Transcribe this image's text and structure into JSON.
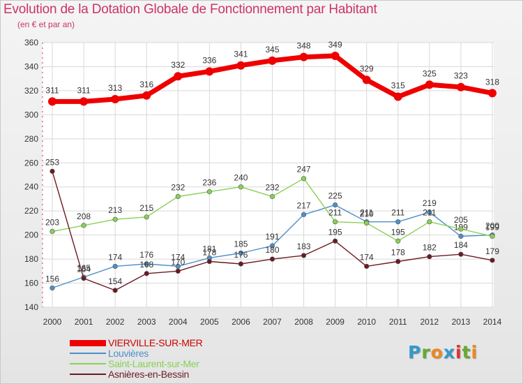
{
  "header": {
    "title": "Evolution de la Dotation Globale de Fonctionnement par Habitant",
    "subtitle": "(en € et par an)"
  },
  "brand": {
    "letters": [
      "P",
      "r",
      "o",
      "x",
      "i",
      "t",
      "i"
    ],
    "colors": [
      "#3399cc",
      "#66aa33",
      "#ee8822",
      "#3399cc",
      "#dd3333",
      "#66aa33",
      "#ee8822"
    ]
  },
  "chart_data": {
    "type": "line",
    "x": [
      2000,
      2001,
      2002,
      2003,
      2004,
      2005,
      2006,
      2007,
      2008,
      2009,
      2010,
      2011,
      2012,
      2013,
      2014
    ],
    "ylim": [
      140,
      360
    ],
    "yticks": [
      140,
      160,
      180,
      200,
      220,
      240,
      260,
      280,
      300,
      320,
      340,
      360
    ],
    "grid": true,
    "legend_position": "bottom-left",
    "series": [
      {
        "name": "VIERVILLE-SUR-MER",
        "color": "#ee0000",
        "emphasis": true,
        "values": [
          311,
          311,
          313,
          316,
          332,
          336,
          341,
          345,
          348,
          349,
          329,
          315,
          325,
          323,
          318
        ]
      },
      {
        "name": "Louvières",
        "color": "#4d8fc8",
        "values": [
          156,
          165,
          174,
          176,
          174,
          181,
          185,
          191,
          217,
          225,
          211,
          211,
          219,
          199,
          200
        ]
      },
      {
        "name": "Saint-Laurent-sur-Mer",
        "color": "#88d154",
        "values": [
          203,
          208,
          213,
          215,
          232,
          236,
          240,
          232,
          247,
          211,
          210,
          195,
          211,
          205,
          199
        ]
      },
      {
        "name": "Asnières-en-Bessin",
        "color": "#6b1a22",
        "values": [
          253,
          164,
          154,
          168,
          170,
          178,
          176,
          180,
          183,
          195,
          174,
          178,
          182,
          184,
          179
        ]
      }
    ]
  }
}
